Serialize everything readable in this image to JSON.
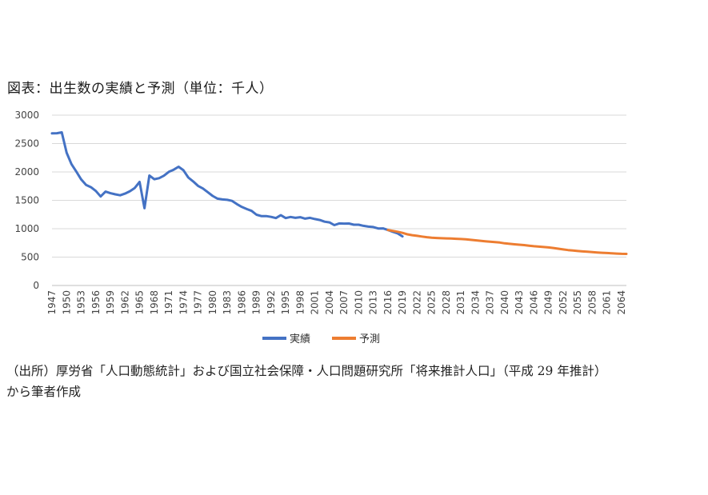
{
  "title": "図表：出生数の実績と予測（単位：千人）",
  "source_line1": "（出所）厚労省「人口動態統計」および国立社会保障・人口問題研究所「将来推計人口」（平成 29 年推計）",
  "source_line2": "から筆者作成",
  "chart_data": {
    "type": "line",
    "title": "図表：出生数の実績と予測（単位：千人）",
    "xlabel": "",
    "ylabel": "",
    "ylim": [
      0,
      3000
    ],
    "yticks": [
      0,
      500,
      1000,
      1500,
      2000,
      2500,
      3000
    ],
    "xlim": [
      1947,
      2065
    ],
    "xticks": [
      1947,
      1950,
      1953,
      1956,
      1959,
      1962,
      1965,
      1968,
      1971,
      1974,
      1977,
      1980,
      1983,
      1986,
      1989,
      1992,
      1995,
      1998,
      2001,
      2004,
      2007,
      2010,
      2013,
      2016,
      2019,
      2022,
      2025,
      2028,
      2031,
      2034,
      2037,
      2040,
      2043,
      2046,
      2049,
      2052,
      2055,
      2058,
      2061,
      2064
    ],
    "grid": "horizontal",
    "legend": "bottom",
    "series": [
      {
        "name": "実績",
        "color": "#4472C4",
        "x": [
          1947,
          1948,
          1949,
          1950,
          1951,
          1952,
          1953,
          1954,
          1955,
          1956,
          1957,
          1958,
          1959,
          1960,
          1961,
          1962,
          1963,
          1964,
          1965,
          1966,
          1967,
          1968,
          1969,
          1970,
          1971,
          1972,
          1973,
          1974,
          1975,
          1976,
          1977,
          1978,
          1979,
          1980,
          1981,
          1982,
          1983,
          1984,
          1985,
          1986,
          1987,
          1988,
          1989,
          1990,
          1991,
          1992,
          1993,
          1994,
          1995,
          1996,
          1997,
          1998,
          1999,
          2000,
          2001,
          2002,
          2003,
          2004,
          2005,
          2006,
          2007,
          2008,
          2009,
          2010,
          2011,
          2012,
          2013,
          2014,
          2015,
          2016,
          2017,
          2018,
          2019
        ],
        "values": [
          2679,
          2682,
          2697,
          2338,
          2138,
          2005,
          1868,
          1770,
          1731,
          1665,
          1567,
          1653,
          1626,
          1606,
          1589,
          1619,
          1660,
          1717,
          1824,
          1361,
          1936,
          1872,
          1890,
          1934,
          2001,
          2039,
          2092,
          2030,
          1901,
          1833,
          1755,
          1709,
          1643,
          1577,
          1529,
          1515,
          1509,
          1490,
          1432,
          1383,
          1347,
          1314,
          1247,
          1222,
          1223,
          1209,
          1188,
          1238,
          1187,
          1207,
          1192,
          1203,
          1178,
          1191,
          1171,
          1154,
          1124,
          1111,
          1063,
          1093,
          1090,
          1091,
          1070,
          1071,
          1051,
          1037,
          1030,
          1004,
          1006,
          977,
          946,
          918,
          865
        ]
      },
      {
        "name": "予測",
        "color": "#ED7D31",
        "x": [
          2016,
          2017,
          2018,
          2019,
          2020,
          2021,
          2022,
          2023,
          2024,
          2025,
          2026,
          2027,
          2028,
          2029,
          2030,
          2031,
          2032,
          2033,
          2034,
          2035,
          2036,
          2037,
          2038,
          2039,
          2040,
          2041,
          2042,
          2043,
          2044,
          2045,
          2046,
          2047,
          2048,
          2049,
          2050,
          2051,
          2052,
          2053,
          2054,
          2055,
          2056,
          2057,
          2058,
          2059,
          2060,
          2061,
          2062,
          2063,
          2064,
          2065
        ],
        "values": [
          977,
          962,
          946,
          927,
          902,
          886,
          874,
          862,
          851,
          842,
          836,
          833,
          830,
          827,
          823,
          818,
          812,
          804,
          796,
          787,
          779,
          771,
          764,
          757,
          742,
          734,
          726,
          718,
          711,
          701,
          692,
          685,
          678,
          671,
          661,
          648,
          635,
          624,
          616,
          607,
          600,
          594,
          588,
          582,
          576,
          572,
          567,
          562,
          558,
          556
        ]
      }
    ]
  }
}
